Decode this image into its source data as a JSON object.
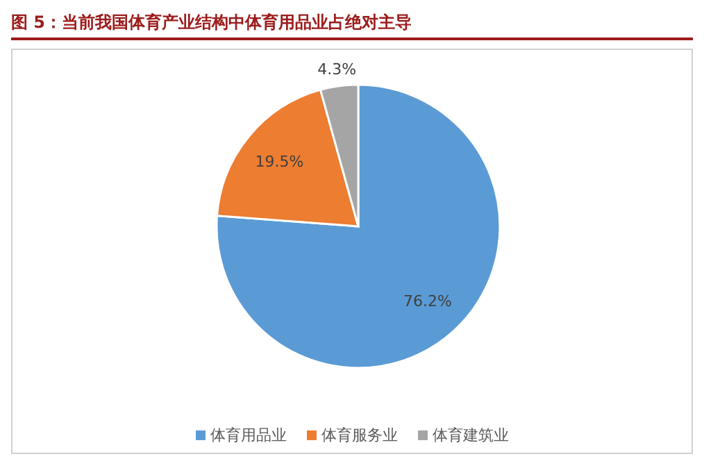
{
  "chart_data": {
    "type": "pie",
    "title": "图 5：当前我国体育产业结构中体育用品业占绝对主导",
    "categories": [
      "体育用品业",
      "体育服务业",
      "体育建筑业"
    ],
    "values": [
      76.2,
      19.5,
      4.3
    ],
    "colors": [
      "#5b9bd5",
      "#ed7d31",
      "#a5a5a5"
    ],
    "value_labels": [
      "76.2%",
      "19.5%",
      "4.3%"
    ],
    "legend": "bottom"
  }
}
